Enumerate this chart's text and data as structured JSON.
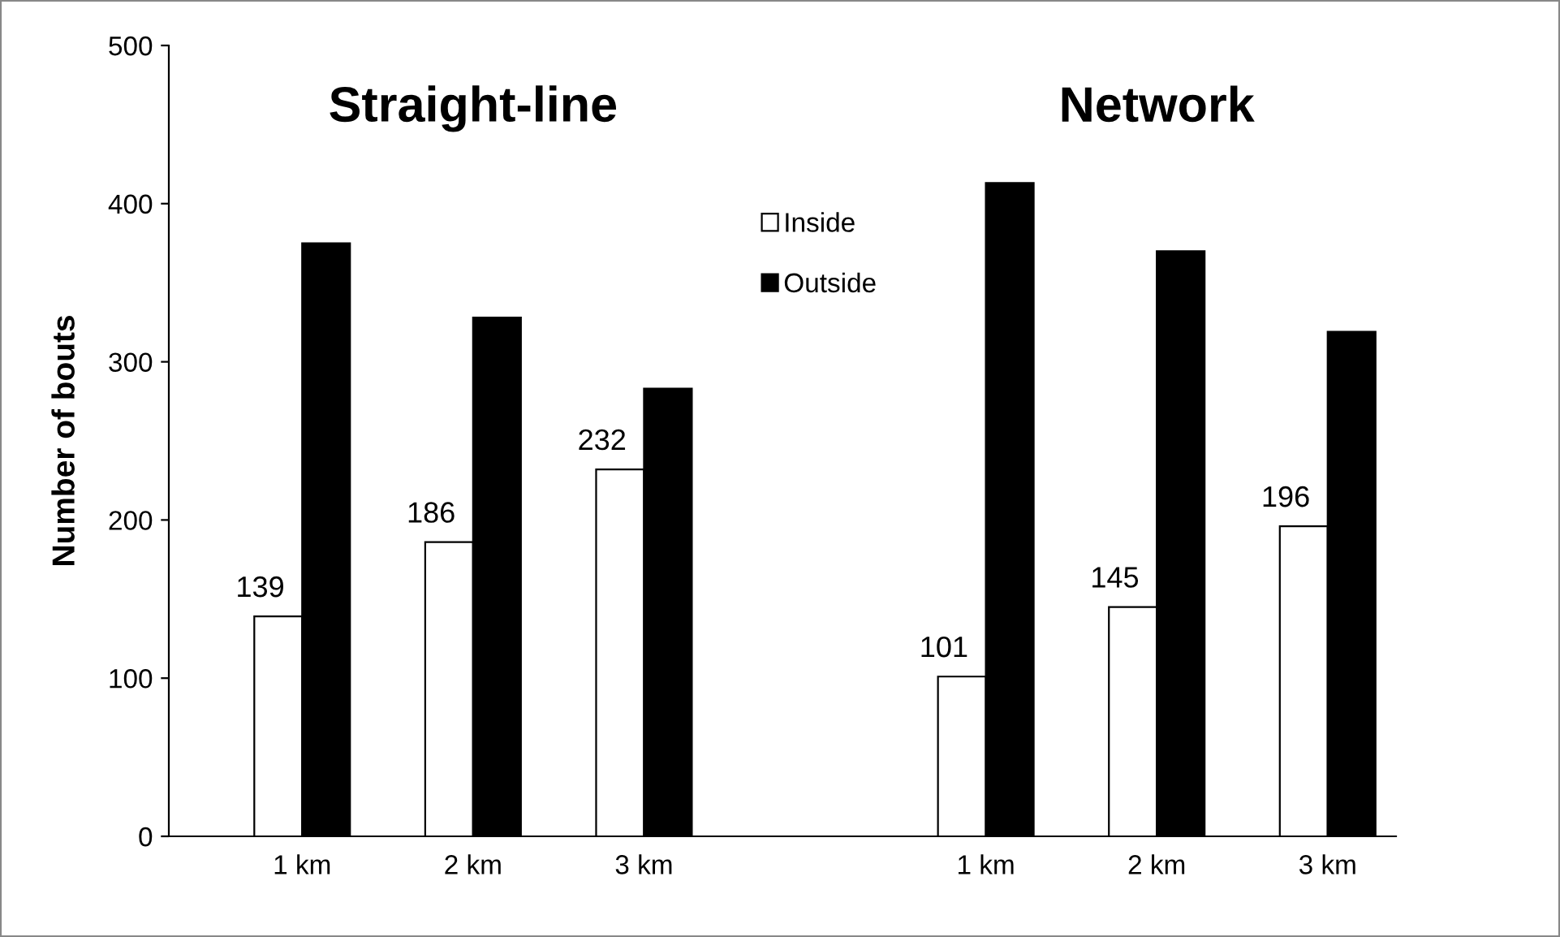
{
  "chart_data": {
    "type": "bar",
    "ylabel": "Number of bouts",
    "categories": [
      "1 km",
      "2 km",
      "3 km",
      null,
      "1 km",
      "2 km",
      "3 km"
    ],
    "series": [
      {
        "name": "Inside",
        "color": "#ffffff",
        "values": [
          139,
          186,
          232,
          null,
          101,
          145,
          196
        ],
        "value_labels": [
          "139",
          "186",
          "232",
          null,
          "101",
          "145",
          "196"
        ]
      },
      {
        "name": "Outside",
        "color": "#000000",
        "values": [
          375,
          328,
          283,
          null,
          413,
          370,
          319
        ]
      }
    ],
    "annotations": [
      "Straight-line",
      "Network"
    ],
    "ylim": [
      0,
      500
    ],
    "yticks": [
      0,
      100,
      200,
      300,
      400,
      500
    ],
    "grid": false,
    "legend": "top"
  }
}
